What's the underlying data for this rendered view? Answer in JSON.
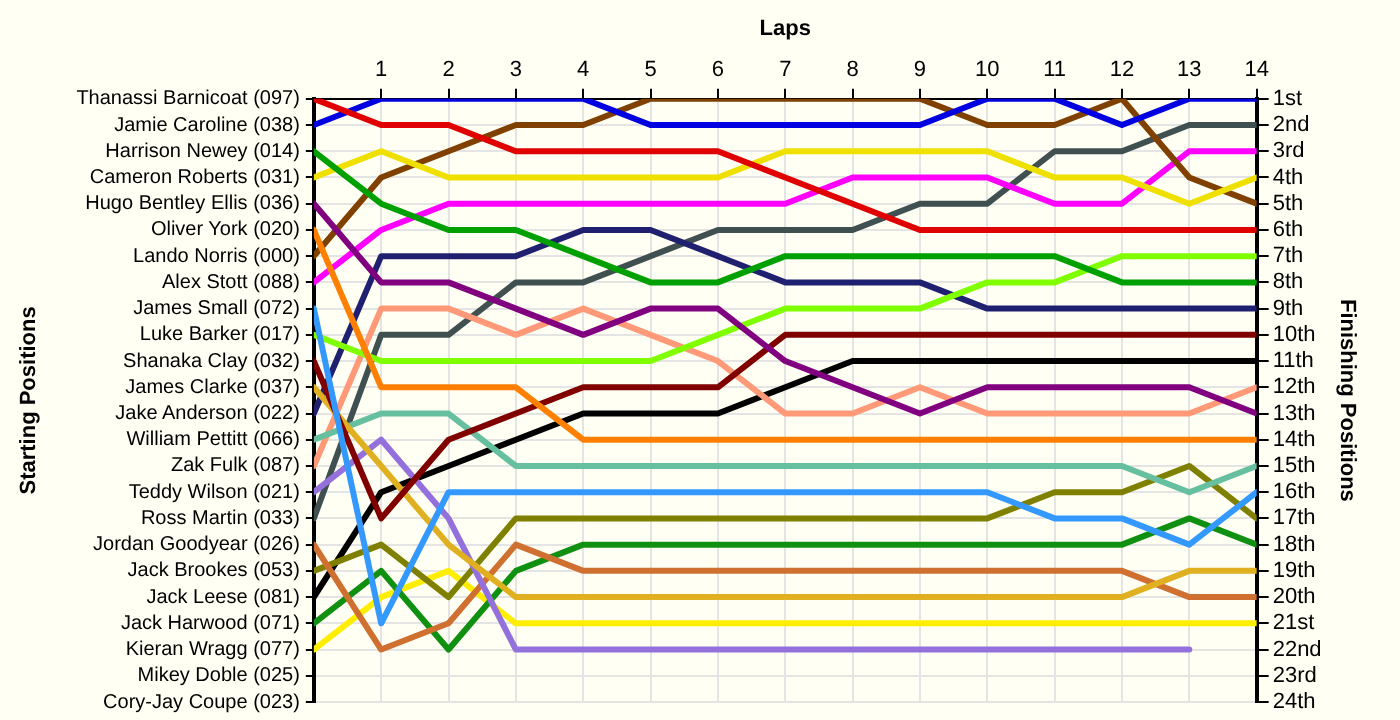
{
  "chart_data": {
    "type": "line",
    "xlabel": "Laps",
    "ylabel": "Finishing Positions",
    "annotations": [
      "Starting Positions"
    ],
    "grid": true,
    "marker": "none",
    "line_style": "solid",
    "x": [
      0,
      1,
      2,
      3,
      4,
      5,
      6,
      7,
      8,
      9,
      10,
      11,
      12,
      13,
      14
    ],
    "xlim": [
      0,
      14
    ],
    "xticks": [
      1,
      2,
      3,
      4,
      5,
      6,
      7,
      8,
      9,
      10,
      11,
      12,
      13,
      14
    ],
    "y_categories": [
      "Thanassi Barnicoat (097)",
      "Jamie Caroline (038)",
      "Harrison Newey (014)",
      "Cameron Roberts (031)",
      "Hugo Bentley Ellis (036)",
      "Oliver York (020)",
      "Lando Norris (000)",
      "Alex Stott (088)",
      "James Small (072)",
      "Luke Barker (017)",
      "Shanaka Clay (032)",
      "James Clarke (037)",
      "Jake Anderson (022)",
      "William Pettitt (066)",
      "Zak Fulk (087)",
      "Teddy Wilson (021)",
      "Ross Martin (033)",
      "Jordan Goodyear (026)",
      "Jack Brookes (053)",
      "Jack Leese (081)",
      "Jack Harwood (071)",
      "Kieran Wragg (077)",
      "Mikey Doble (025)",
      "Cory-Jay Coupe (023)"
    ],
    "ylim": [
      24,
      1
    ],
    "yticks": [
      {
        "value": 1,
        "label": "1st"
      },
      {
        "value": 2,
        "label": "2nd"
      },
      {
        "value": 3,
        "label": "3rd"
      },
      {
        "value": 4,
        "label": "4th"
      },
      {
        "value": 5,
        "label": "5th"
      },
      {
        "value": 6,
        "label": "6th"
      },
      {
        "value": 7,
        "label": "7th"
      },
      {
        "value": 8,
        "label": "8th"
      },
      {
        "value": 9,
        "label": "9th"
      },
      {
        "value": 10,
        "label": "10th"
      },
      {
        "value": 11,
        "label": "11th"
      },
      {
        "value": 12,
        "label": "12th"
      },
      {
        "value": 13,
        "label": "13th"
      },
      {
        "value": 14,
        "label": "14th"
      },
      {
        "value": 15,
        "label": "15th"
      },
      {
        "value": 16,
        "label": "16th"
      },
      {
        "value": 17,
        "label": "17th"
      },
      {
        "value": 18,
        "label": "18th"
      },
      {
        "value": 19,
        "label": "19th"
      },
      {
        "value": 20,
        "label": "20th"
      },
      {
        "value": 21,
        "label": "21st"
      },
      {
        "value": 22,
        "label": "22nd"
      },
      {
        "value": 23,
        "label": "23rd"
      },
      {
        "value": 24,
        "label": "24th"
      }
    ],
    "series": [
      {
        "color": "#e00000",
        "values": [
          1,
          2,
          2,
          3,
          3,
          3,
          3,
          4,
          5,
          6,
          6,
          6,
          6,
          6,
          6
        ]
      },
      {
        "color": "#0000e0",
        "values": [
          2,
          1,
          1,
          1,
          1,
          2,
          2,
          2,
          2,
          2,
          1,
          1,
          2,
          1,
          1
        ]
      },
      {
        "color": "#00a000",
        "values": [
          3,
          5,
          6,
          6,
          7,
          8,
          8,
          7,
          7,
          7,
          7,
          7,
          8,
          8,
          8
        ]
      },
      {
        "color": "#f0e000",
        "values": [
          4,
          3,
          4,
          4,
          4,
          4,
          4,
          3,
          3,
          3,
          3,
          4,
          4,
          5,
          4
        ]
      },
      {
        "color": "#800080",
        "values": [
          5,
          8,
          8,
          9,
          10,
          9,
          9,
          11,
          12,
          13,
          12,
          12,
          12,
          12,
          13
        ]
      },
      {
        "color": "#ff8000",
        "values": [
          6,
          12,
          12,
          12,
          14,
          14,
          14,
          14,
          14,
          14,
          14,
          14,
          14,
          14,
          14
        ]
      },
      {
        "color": "#804000",
        "values": [
          7,
          4,
          3,
          2,
          2,
          1,
          1,
          1,
          1,
          1,
          2,
          2,
          1,
          4,
          5
        ]
      },
      {
        "color": "#ff00ff",
        "values": [
          8,
          6,
          5,
          5,
          5,
          5,
          5,
          5,
          4,
          4,
          4,
          5,
          5,
          3,
          3
        ]
      },
      {
        "color": "#3399ff",
        "values": [
          9,
          21,
          16,
          16,
          16,
          16,
          16,
          16,
          16,
          16,
          16,
          17,
          17,
          18,
          16
        ]
      },
      {
        "color": "#80ff00",
        "values": [
          10,
          11,
          11,
          11,
          11,
          11,
          10,
          9,
          9,
          9,
          8,
          8,
          7,
          7,
          7
        ]
      },
      {
        "color": "#800000",
        "values": [
          11,
          17,
          14,
          13,
          12,
          12,
          12,
          10,
          10,
          10,
          10,
          10,
          10,
          10,
          10
        ]
      },
      {
        "color": "#e0b020",
        "values": [
          12,
          15,
          18,
          20,
          20,
          20,
          20,
          20,
          20,
          20,
          20,
          20,
          20,
          19,
          19
        ]
      },
      {
        "color": "#202070",
        "values": [
          13,
          7,
          7,
          7,
          6,
          6,
          7,
          8,
          8,
          8,
          9,
          9,
          9,
          9,
          9
        ]
      },
      {
        "color": "#66c0a0",
        "values": [
          14,
          13,
          13,
          15,
          15,
          15,
          15,
          15,
          15,
          15,
          15,
          15,
          15,
          16,
          15
        ]
      },
      {
        "color": "#ff9977",
        "values": [
          15,
          9,
          9,
          10,
          9,
          10,
          11,
          13,
          13,
          12,
          13,
          13,
          13,
          13,
          12
        ]
      },
      {
        "color": "#9370db",
        "values": [
          16,
          14,
          17,
          22,
          22,
          22,
          22,
          22,
          22,
          22,
          22,
          22,
          22,
          22,
          null
        ]
      },
      {
        "color": "#405050",
        "values": [
          17,
          10,
          10,
          8,
          8,
          7,
          6,
          6,
          6,
          5,
          5,
          3,
          3,
          2,
          2
        ]
      },
      {
        "color": "#d07030",
        "values": [
          18,
          22,
          21,
          18,
          19,
          19,
          19,
          19,
          19,
          19,
          19,
          19,
          19,
          20,
          20
        ]
      },
      {
        "color": "#808000",
        "values": [
          19,
          18,
          20,
          17,
          17,
          17,
          17,
          17,
          17,
          17,
          17,
          16,
          16,
          15,
          17
        ]
      },
      {
        "color": "#000000",
        "values": [
          20,
          16,
          15,
          14,
          13,
          13,
          13,
          12,
          11,
          11,
          11,
          11,
          11,
          11,
          11
        ]
      },
      {
        "color": "#109010",
        "values": [
          21,
          19,
          22,
          19,
          18,
          18,
          18,
          18,
          18,
          18,
          18,
          18,
          18,
          17,
          18
        ]
      },
      {
        "color": "#ffee00",
        "values": [
          22,
          20,
          19,
          21,
          21,
          21,
          21,
          21,
          21,
          21,
          21,
          21,
          21,
          21,
          21
        ]
      }
    ]
  }
}
